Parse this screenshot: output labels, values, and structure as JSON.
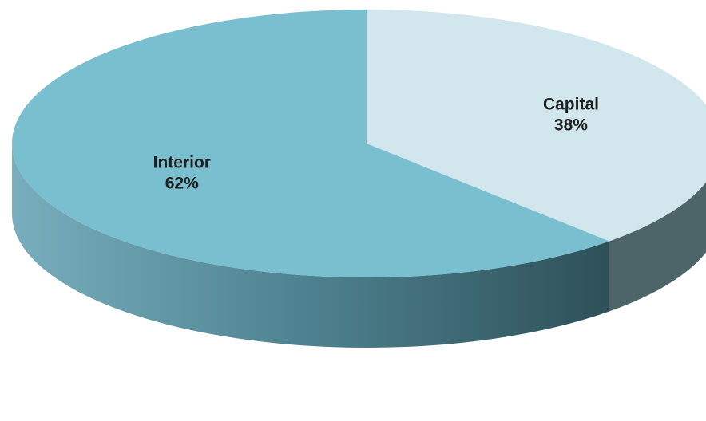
{
  "chart_data": {
    "type": "pie",
    "title": "",
    "categories": [
      "Capital",
      "Interior"
    ],
    "values": [
      38,
      62
    ],
    "value_labels": [
      "38%",
      "62%"
    ],
    "colors": [
      "#d2e6ee",
      "#79bfd0"
    ],
    "side_colors": [
      "#4d6468",
      "#33545c"
    ],
    "style": "3d",
    "start_angle_deg": -90,
    "legend": "none"
  }
}
